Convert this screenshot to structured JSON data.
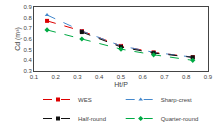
{
  "chart_data": {
    "type": "line",
    "xlabel": "Ht/P",
    "ylabel": "Cd (m³)",
    "series": [
      {
        "name": "WES",
        "color": "#dd0000",
        "marker": "square",
        "line_style": "dashed",
        "x": [
          0.16,
          0.32,
          0.5,
          0.65,
          0.83
        ],
        "values": [
          0.77,
          0.675,
          0.535,
          0.475,
          0.43
        ]
      },
      {
        "name": "Sharp-crest",
        "color": "#4488cc",
        "marker": "triangle-up",
        "line_style": "dashed",
        "x": [
          0.16,
          0.32,
          0.5,
          0.65,
          0.83
        ],
        "values": [
          0.825,
          0.675,
          0.535,
          0.475,
          0.43
        ]
      },
      {
        "name": "Half-round",
        "color": "#111111",
        "marker": "square",
        "line_style": "dashed",
        "x": [
          0.32,
          0.5,
          0.65,
          0.83
        ],
        "values": [
          0.665,
          0.525,
          0.468,
          0.428
        ]
      },
      {
        "name": "Quarter-round",
        "color": "#00aa44",
        "marker": "diamond",
        "line_style": "dashed",
        "x": [
          0.16,
          0.32,
          0.5,
          0.65,
          0.83
        ],
        "values": [
          0.685,
          0.6,
          0.505,
          0.452,
          0.4
        ]
      }
    ],
    "xlim": [
      0.1,
      0.9
    ],
    "ylim": [
      0.3,
      0.9
    ],
    "xticks": [
      0.1,
      0.2,
      0.3,
      0.4,
      0.5,
      0.6,
      0.7,
      0.8,
      0.9
    ],
    "yticks": [
      0.3,
      0.4,
      0.5,
      0.6,
      0.7,
      0.8,
      0.9
    ],
    "grid": false,
    "legend": "bottom"
  }
}
